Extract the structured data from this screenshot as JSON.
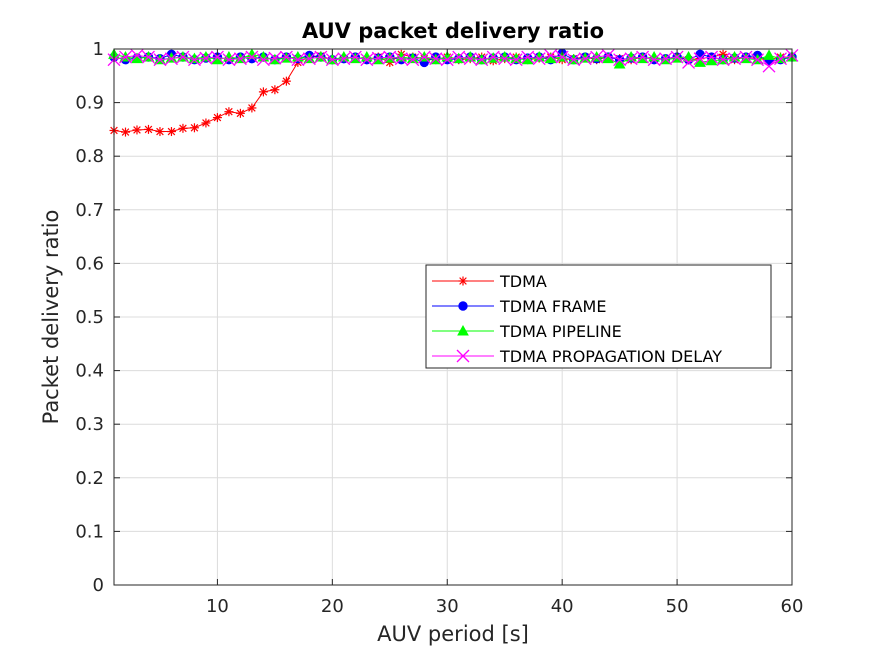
{
  "chart_data": {
    "type": "line",
    "title": "AUV packet delivery ratio",
    "xlabel": "AUV period [s]",
    "ylabel": "Packet delivery ratio",
    "xlim": [
      1,
      60
    ],
    "ylim": [
      0,
      1
    ],
    "x_ticks": [
      10,
      20,
      30,
      40,
      50,
      60
    ],
    "y_ticks": [
      0,
      0.1,
      0.2,
      0.3,
      0.4,
      0.5,
      0.6,
      0.7,
      0.8,
      0.9,
      1
    ],
    "x_tick_labels": [
      "10",
      "20",
      "30",
      "40",
      "50",
      "60"
    ],
    "y_tick_labels": [
      "0",
      "0.1",
      "0.2",
      "0.3",
      "0.4",
      "0.5",
      "0.6",
      "0.7",
      "0.8",
      "0.9",
      "1"
    ],
    "grid": true,
    "legend_position": "center-right",
    "x": [
      1,
      2,
      3,
      4,
      5,
      6,
      7,
      8,
      9,
      10,
      11,
      12,
      13,
      14,
      15,
      16,
      17,
      18,
      19,
      20,
      21,
      22,
      23,
      24,
      25,
      26,
      27,
      28,
      29,
      30,
      31,
      32,
      33,
      34,
      35,
      36,
      37,
      38,
      39,
      40,
      41,
      42,
      43,
      44,
      45,
      46,
      47,
      48,
      49,
      50,
      51,
      52,
      53,
      54,
      55,
      56,
      57,
      58,
      59,
      60
    ],
    "series": [
      {
        "name": "TDMA",
        "color": "#ff0000",
        "marker": "asterisk",
        "values": [
          0.848,
          0.845,
          0.849,
          0.85,
          0.846,
          0.846,
          0.852,
          0.853,
          0.862,
          0.872,
          0.883,
          0.88,
          0.89,
          0.92,
          0.924,
          0.94,
          0.975,
          0.985,
          0.987,
          0.98,
          0.982,
          0.985,
          0.98,
          0.985,
          0.975,
          0.99,
          0.985,
          0.982,
          0.98,
          0.985,
          0.98,
          0.982,
          0.985,
          0.978,
          0.982,
          0.985,
          0.98,
          0.983,
          0.985,
          0.98,
          0.982,
          0.985,
          0.98,
          0.985,
          0.982,
          0.98,
          0.985,
          0.98,
          0.982,
          0.985,
          0.98,
          0.982,
          0.985,
          0.99,
          0.98,
          0.985,
          0.982,
          0.98,
          0.985,
          0.985
        ]
      },
      {
        "name": "TDMA FRAME",
        "color": "#0000ff",
        "marker": "circle",
        "values": [
          0.985,
          0.98,
          0.983,
          0.985,
          0.982,
          0.99,
          0.985,
          0.98,
          0.983,
          0.985,
          0.98,
          0.985,
          0.982,
          0.985,
          0.98,
          0.985,
          0.982,
          0.988,
          0.985,
          0.98,
          0.982,
          0.985,
          0.98,
          0.983,
          0.985,
          0.98,
          0.983,
          0.975,
          0.985,
          0.98,
          0.982,
          0.985,
          0.98,
          0.983,
          0.985,
          0.98,
          0.983,
          0.985,
          0.98,
          0.992,
          0.98,
          0.985,
          0.982,
          0.985,
          0.98,
          0.983,
          0.985,
          0.98,
          0.982,
          0.985,
          0.98,
          0.99,
          0.985,
          0.98,
          0.983,
          0.985,
          0.988,
          0.978,
          0.98,
          0.985
        ]
      },
      {
        "name": "TDMA PIPELINE",
        "color": "#00ff00",
        "marker": "triangle",
        "values": [
          0.99,
          0.985,
          0.982,
          0.985,
          0.98,
          0.983,
          0.985,
          0.982,
          0.985,
          0.98,
          0.985,
          0.982,
          0.99,
          0.985,
          0.98,
          0.983,
          0.985,
          0.982,
          0.985,
          0.98,
          0.985,
          0.982,
          0.985,
          0.98,
          0.983,
          0.985,
          0.982,
          0.985,
          0.98,
          0.985,
          0.982,
          0.985,
          0.98,
          0.983,
          0.985,
          0.982,
          0.98,
          0.985,
          0.982,
          0.985,
          0.98,
          0.983,
          0.985,
          0.982,
          0.972,
          0.985,
          0.982,
          0.985,
          0.98,
          0.983,
          0.985,
          0.975,
          0.978,
          0.98,
          0.985,
          0.982,
          0.98,
          0.988,
          0.982,
          0.985
        ]
      },
      {
        "name": "TDMA PROPAGATION DELAY",
        "color": "#ff00ff",
        "marker": "x",
        "values": [
          0.98,
          0.985,
          0.988,
          0.985,
          0.98,
          0.982,
          0.985,
          0.98,
          0.983,
          0.985,
          0.98,
          0.982,
          0.985,
          0.98,
          0.983,
          0.985,
          0.98,
          0.982,
          0.985,
          0.98,
          0.982,
          0.985,
          0.98,
          0.983,
          0.985,
          0.982,
          0.98,
          0.985,
          0.982,
          0.98,
          0.985,
          0.982,
          0.98,
          0.985,
          0.982,
          0.98,
          0.985,
          0.982,
          0.988,
          0.985,
          0.98,
          0.982,
          0.985,
          0.988,
          0.98,
          0.982,
          0.985,
          0.98,
          0.982,
          0.985,
          0.975,
          0.982,
          0.985,
          0.98,
          0.982,
          0.985,
          0.98,
          0.968,
          0.982,
          0.988
        ]
      }
    ]
  }
}
